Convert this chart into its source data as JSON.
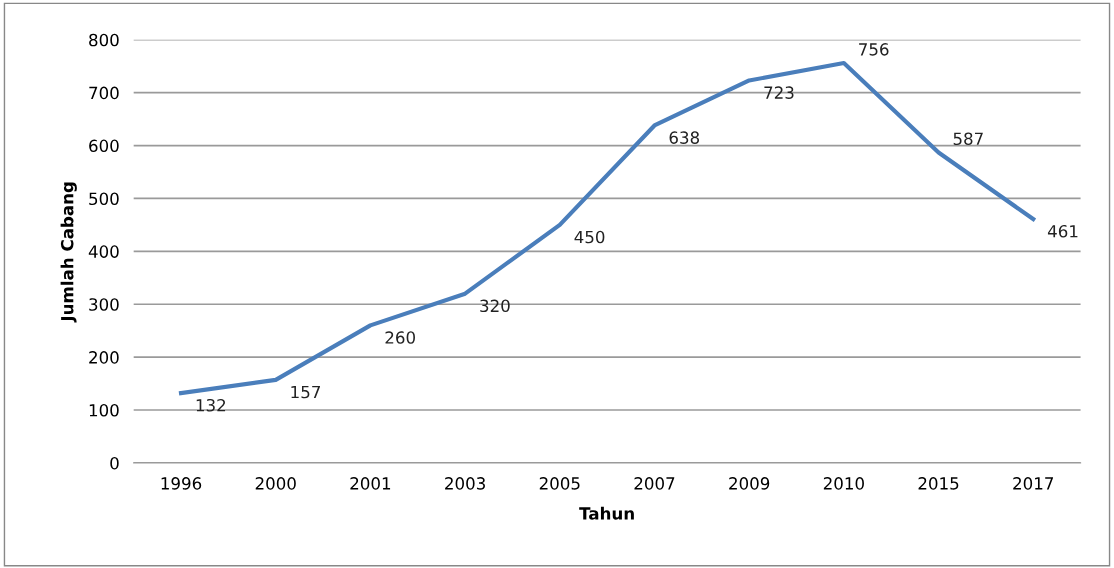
{
  "chart_data": {
    "type": "line",
    "xlabel": "Tahun",
    "ylabel": "Jumlah Cabang",
    "categories": [
      "1996",
      "2000",
      "2001",
      "2003",
      "2005",
      "2007",
      "2009",
      "2010",
      "2015",
      "2017"
    ],
    "series": [
      {
        "color": "#4a7ebb",
        "values": [
          132,
          157,
          260,
          320,
          450,
          638,
          723,
          756,
          587,
          461
        ]
      }
    ],
    "ylim": [
      0,
      800
    ],
    "yticks": [
      0,
      100,
      200,
      300,
      400,
      500,
      600,
      700,
      800
    ],
    "grid": "y",
    "data_labels": true,
    "marker": "none",
    "line_style": "solid"
  }
}
